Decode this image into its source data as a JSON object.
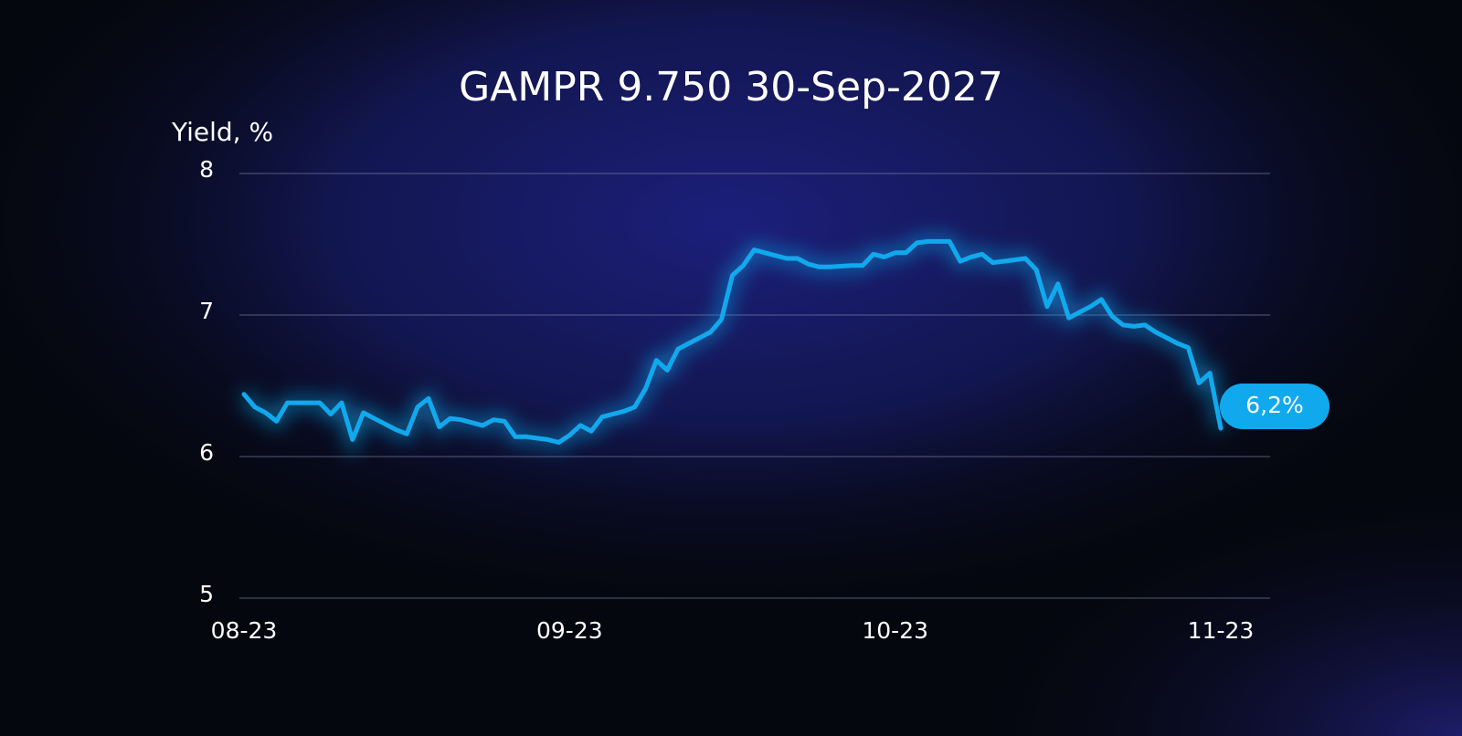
{
  "chart_data": {
    "type": "line",
    "title": "GAMPR 9.750 30-Sep-2027",
    "y_label": "Yield, %",
    "categories": [
      "08-23",
      null,
      null,
      null,
      null,
      null,
      null,
      null,
      null,
      null,
      null,
      null,
      null,
      null,
      null,
      null,
      null,
      null,
      null,
      null,
      null,
      null,
      null,
      null,
      null,
      null,
      null,
      null,
      null,
      null,
      "09-23",
      null,
      null,
      null,
      null,
      null,
      null,
      null,
      null,
      null,
      null,
      null,
      null,
      null,
      null,
      null,
      null,
      null,
      null,
      null,
      null,
      null,
      null,
      null,
      null,
      null,
      null,
      null,
      null,
      null,
      "10-23",
      null,
      null,
      null,
      null,
      null,
      null,
      null,
      null,
      null,
      null,
      null,
      null,
      null,
      null,
      null,
      null,
      null,
      null,
      null,
      null,
      null,
      null,
      null,
      null,
      null,
      null,
      null,
      null,
      null,
      "11-23"
    ],
    "values": [
      6.44,
      6.35,
      6.31,
      6.25,
      6.38,
      6.38,
      6.38,
      6.38,
      6.3,
      6.38,
      6.12,
      6.31,
      6.27,
      6.23,
      6.19,
      6.16,
      6.35,
      6.41,
      6.21,
      6.27,
      6.26,
      6.24,
      6.22,
      6.26,
      6.25,
      6.14,
      6.14,
      6.13,
      6.12,
      6.1,
      6.15,
      6.22,
      6.18,
      6.28,
      6.3,
      6.32,
      6.35,
      6.48,
      6.68,
      6.61,
      6.76,
      6.8,
      6.84,
      6.88,
      6.97,
      7.28,
      7.35,
      7.46,
      7.44,
      7.42,
      7.4,
      7.4,
      7.36,
      7.34,
      7.34,
      7.345,
      7.35,
      7.35,
      7.43,
      7.41,
      7.44,
      7.44,
      7.51,
      7.52,
      7.52,
      7.52,
      7.38,
      7.41,
      7.43,
      7.37,
      7.38,
      7.39,
      7.4,
      7.32,
      7.06,
      7.22,
      6.98,
      7.02,
      7.06,
      7.11,
      6.99,
      6.93,
      6.92,
      6.93,
      6.88,
      6.84,
      6.8,
      6.77,
      6.52,
      6.59,
      6.2
    ],
    "value_labels": [
      null,
      null,
      null,
      null,
      null,
      null,
      null,
      null,
      null,
      null,
      null,
      null,
      null,
      null,
      null,
      null,
      null,
      null,
      null,
      null,
      null,
      null,
      null,
      null,
      null,
      null,
      null,
      null,
      null,
      null,
      null,
      null,
      null,
      null,
      null,
      null,
      null,
      null,
      null,
      null,
      null,
      null,
      null,
      null,
      null,
      null,
      null,
      null,
      null,
      null,
      null,
      null,
      null,
      null,
      null,
      null,
      null,
      null,
      null,
      null,
      null,
      null,
      null,
      null,
      null,
      null,
      null,
      null,
      null,
      null,
      null,
      null,
      null,
      null,
      null,
      null,
      null,
      null,
      null,
      null,
      null,
      null,
      null,
      null,
      null,
      null,
      null,
      null,
      null,
      null,
      "6,2%"
    ],
    "color": "#10a9ee",
    "ylim": [
      5,
      8
    ],
    "yticks": [
      5,
      6,
      7,
      8
    ],
    "grid": true
  }
}
